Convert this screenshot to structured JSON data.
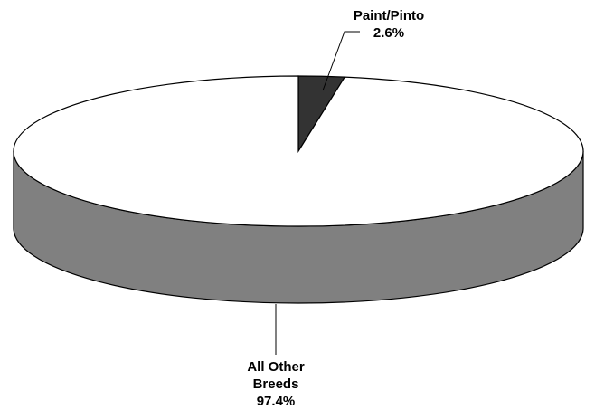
{
  "chart_data": {
    "type": "pie",
    "categories": [
      "Paint/Pinto",
      "All Other Breeds"
    ],
    "values": [
      2.6,
      97.4
    ],
    "value_labels": [
      "2.6%",
      "97.4%"
    ],
    "colors": [
      "#333333",
      "#ffffff"
    ]
  }
}
